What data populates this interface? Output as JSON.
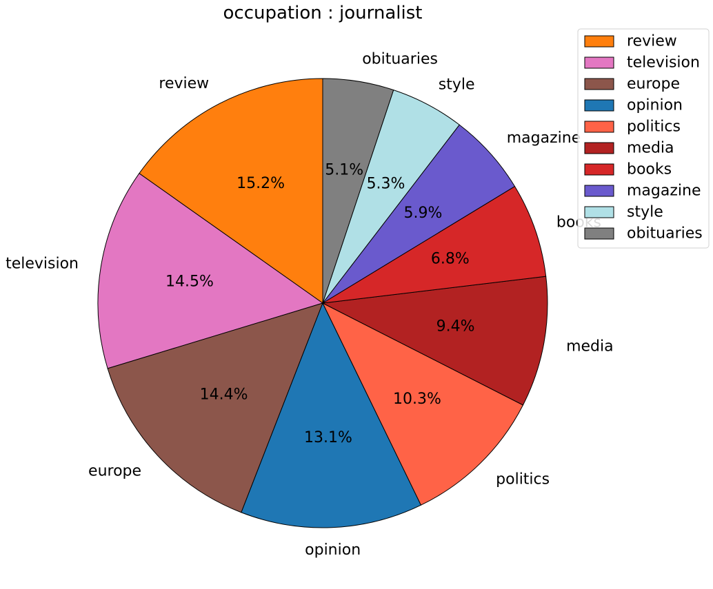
{
  "chart_data": {
    "type": "pie",
    "title": "occupation : journalist",
    "categories": [
      "review",
      "television",
      "europe",
      "opinion",
      "politics",
      "media",
      "books",
      "magazine",
      "style",
      "obituaries"
    ],
    "values": [
      15.2,
      14.5,
      14.4,
      13.1,
      10.3,
      9.4,
      6.8,
      5.9,
      5.3,
      5.1
    ],
    "value_labels": [
      "15.2%",
      "14.5%",
      "14.4%",
      "13.1%",
      "10.3%",
      "9.4%",
      "6.8%",
      "5.9%",
      "5.3%",
      "5.1%"
    ],
    "colors": [
      "#ff7f0e",
      "#e377c2",
      "#8c564b",
      "#1f77b4",
      "#ff6347",
      "#b22222",
      "#d62728",
      "#6a5acd",
      "#b0e0e6",
      "#808080"
    ],
    "start_angle_deg": 90,
    "direction": "counterclockwise",
    "legend": {
      "placement": "top-right",
      "entries": [
        "review",
        "television",
        "europe",
        "opinion",
        "politics",
        "media",
        "books",
        "magazine",
        "style",
        "obituaries"
      ]
    }
  }
}
